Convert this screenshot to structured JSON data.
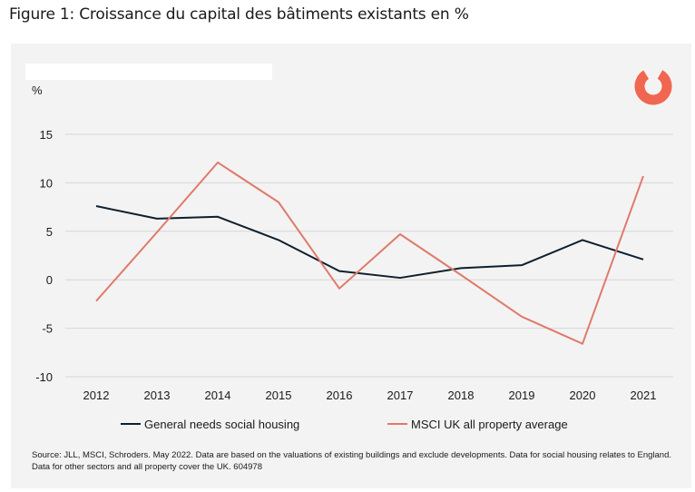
{
  "figure_title": "Figure 1: Croissance du capital des bâtiments existants en %",
  "source_note": "Source: JLL, MSCI, Schroders. May 2022. Data are based on the valuations of existing buildings and exclude developments. Data for social housing relates to England. Data for other sectors and all property cover the UK. 604978",
  "logo": {
    "icon": "schroders-ring-logo",
    "color": "#f06650"
  },
  "colors": {
    "series1": "#0e1f2e",
    "series2": "#e07a6a",
    "grid": "#d6d6d6"
  },
  "chart_data": {
    "type": "line",
    "title": "",
    "xlabel": "",
    "ylabel": "%",
    "categories": [
      "2012",
      "2013",
      "2014",
      "2015",
      "2016",
      "2017",
      "2018",
      "2019",
      "2020",
      "2021"
    ],
    "ylim": [
      -10,
      15
    ],
    "yticks": [
      "15",
      "10",
      "5",
      "0",
      "-5",
      "-10"
    ],
    "grid": true,
    "legend_position": "bottom",
    "series": [
      {
        "name": "General needs social housing",
        "values": [
          7.6,
          6.3,
          6.5,
          4.1,
          0.9,
          0.2,
          1.2,
          1.5,
          4.1,
          2.1
        ]
      },
      {
        "name": "MSCI UK all property average",
        "values": [
          -2.2,
          4.9,
          12.1,
          8.0,
          -0.9,
          4.7,
          0.5,
          -3.8,
          -6.6,
          10.7
        ]
      }
    ]
  }
}
